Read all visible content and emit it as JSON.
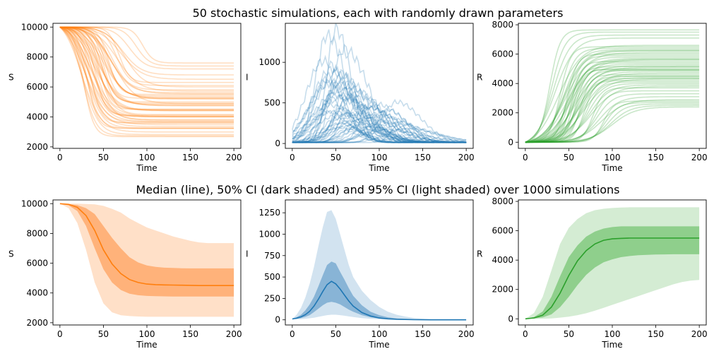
{
  "suptitles": [
    "50 stochastic simulations, each with randomly drawn parameters",
    "Median (line), 50% CI (dark shaded) and 95% CI (light shaded) over 1000 simulations"
  ],
  "colors": {
    "S": "#ff7f0e",
    "I": "#1f77b4",
    "R": "#2ca02c",
    "S_ci95": "#ffe0c8",
    "S_ci50": "#ffb27a",
    "I_ci95": "#d2e3f0",
    "I_ci50": "#88b4d6",
    "R_ci95": "#d4ecd3",
    "R_ci50": "#8fcf8c"
  },
  "chart_data": [
    {
      "type": "line",
      "panel": "top-left",
      "xlabel": "Time",
      "ylabel": "S",
      "xlim": [
        -8,
        208
      ],
      "ylim": [
        1900,
        10250
      ],
      "xticks": [
        0,
        50,
        100,
        150,
        200
      ],
      "yticks": [
        2000,
        4000,
        6000,
        8000,
        10000
      ],
      "series_count": 50,
      "final_values": [
        7600,
        7400,
        7200,
        6800,
        6500,
        6300,
        6100,
        5800,
        5600,
        5500,
        5500,
        5400,
        5300,
        5200,
        5100,
        5000,
        4900,
        4800,
        4700,
        4600,
        4500,
        4500,
        4400,
        4300,
        4200,
        4100,
        4000,
        3900,
        3800,
        3700,
        3600,
        3500,
        3500,
        3400,
        3300,
        3200,
        3100,
        3000,
        2900,
        2800,
        2600,
        2500,
        2400,
        2300,
        4850,
        5250,
        4150,
        3750,
        6000,
        5700
      ],
      "midpoints": [
        95,
        88,
        80,
        72,
        70,
        68,
        65,
        60,
        58,
        58,
        56,
        55,
        54,
        52,
        50,
        50,
        48,
        47,
        46,
        45,
        45,
        44,
        43,
        42,
        40,
        40,
        38,
        38,
        36,
        36,
        35,
        34,
        33,
        33,
        32,
        31,
        30,
        30,
        29,
        28,
        27,
        26,
        26,
        25,
        62,
        52,
        50,
        42,
        75,
        66
      ]
    },
    {
      "type": "line",
      "panel": "top-middle",
      "xlabel": "Time",
      "ylabel": "I",
      "xlim": [
        -8,
        208
      ],
      "ylim": [
        -60,
        1480
      ],
      "xticks": [
        0,
        50,
        100,
        150,
        200
      ],
      "yticks": [
        0,
        500,
        1000
      ],
      "series_count": 50,
      "peak_values": [
        1400,
        1320,
        1150,
        1000,
        900,
        850,
        800,
        780,
        760,
        750,
        720,
        700,
        680,
        650,
        620,
        600,
        580,
        560,
        540,
        520,
        500,
        480,
        460,
        440,
        420,
        400,
        380,
        360,
        350,
        340,
        320,
        300,
        280,
        260,
        240,
        230,
        220,
        200,
        190,
        180,
        170,
        160,
        150,
        140,
        550,
        430,
        380,
        330,
        260,
        200
      ],
      "peak_times": [
        50,
        40,
        60,
        35,
        45,
        48,
        52,
        38,
        55,
        44,
        42,
        58,
        47,
        62,
        50,
        70,
        46,
        54,
        66,
        43,
        120,
        95,
        41,
        80,
        57,
        110,
        39,
        64,
        75,
        53,
        85,
        49,
        100,
        68,
        56,
        115,
        61,
        90,
        72,
        51,
        130,
        105,
        59,
        78,
        65,
        88,
        45,
        98,
        125,
        60
      ]
    },
    {
      "type": "line",
      "panel": "top-right",
      "xlabel": "Time",
      "ylabel": "R",
      "xlim": [
        -8,
        208
      ],
      "ylim": [
        -420,
        8100
      ],
      "xticks": [
        0,
        50,
        100,
        150,
        200
      ],
      "yticks": [
        0,
        2000,
        4000,
        6000,
        8000
      ],
      "series_count": 50,
      "final_values": [
        7650,
        7500,
        7300,
        7100,
        6600,
        6500,
        6400,
        6300,
        6200,
        6100,
        6000,
        5900,
        5800,
        5700,
        5600,
        5500,
        5400,
        5300,
        5200,
        5100,
        5000,
        4900,
        4900,
        4800,
        4700,
        4600,
        4500,
        4500,
        4400,
        4300,
        4200,
        4100,
        4000,
        3900,
        3800,
        3700,
        3500,
        3300,
        3100,
        2900,
        2800,
        2700,
        2600,
        2500,
        2400,
        4950,
        5150,
        4350,
        6250,
        5650
      ],
      "midpoints": [
        28,
        30,
        32,
        34,
        38,
        40,
        42,
        44,
        45,
        46,
        48,
        49,
        50,
        51,
        52,
        53,
        54,
        55,
        56,
        57,
        58,
        59,
        60,
        61,
        62,
        63,
        64,
        65,
        66,
        67,
        68,
        70,
        72,
        74,
        76,
        78,
        80,
        82,
        85,
        88,
        90,
        92,
        95,
        98,
        100,
        55,
        50,
        60,
        44,
        48
      ]
    },
    {
      "type": "area",
      "panel": "bottom-left",
      "xlabel": "Time",
      "ylabel": "S",
      "xlim": [
        -8,
        208
      ],
      "ylim": [
        1850,
        10250
      ],
      "xticks": [
        0,
        50,
        100,
        150,
        200
      ],
      "yticks": [
        2000,
        4000,
        6000,
        8000,
        10000
      ],
      "x": [
        0,
        10,
        20,
        30,
        40,
        50,
        60,
        70,
        80,
        90,
        100,
        110,
        120,
        130,
        140,
        150,
        160,
        170,
        180,
        190,
        200
      ],
      "median": [
        10000,
        9950,
        9750,
        9200,
        8200,
        6900,
        5950,
        5300,
        4900,
        4700,
        4600,
        4560,
        4540,
        4530,
        4520,
        4510,
        4500,
        4500,
        4500,
        4500,
        4500
      ],
      "ci50_low": [
        10000,
        9880,
        9500,
        8500,
        7000,
        5600,
        4700,
        4200,
        3950,
        3850,
        3800,
        3780,
        3770,
        3760,
        3760,
        3760,
        3760,
        3760,
        3760,
        3760,
        3760
      ],
      "ci50_high": [
        10000,
        9980,
        9900,
        9700,
        9300,
        8500,
        7700,
        7000,
        6400,
        6050,
        5850,
        5750,
        5700,
        5680,
        5660,
        5650,
        5650,
        5650,
        5650,
        5650,
        5650
      ],
      "ci95_low": [
        10000,
        9700,
        8700,
        6900,
        4700,
        3300,
        2700,
        2500,
        2450,
        2420,
        2400,
        2400,
        2400,
        2400,
        2400,
        2400,
        2400,
        2400,
        2400,
        2400,
        2400
      ],
      "ci95_high": [
        10000,
        10000,
        10000,
        9980,
        9950,
        9850,
        9650,
        9400,
        9000,
        8700,
        8400,
        8200,
        8000,
        7800,
        7650,
        7500,
        7400,
        7350,
        7350,
        7350,
        7350
      ]
    },
    {
      "type": "area",
      "panel": "bottom-middle",
      "xlabel": "Time",
      "ylabel": "I",
      "xlim": [
        -8,
        208
      ],
      "ylim": [
        -60,
        1400
      ],
      "xticks": [
        0,
        50,
        100,
        150,
        200
      ],
      "yticks": [
        0,
        250,
        500,
        750,
        1000,
        1250
      ],
      "x": [
        0,
        5,
        10,
        15,
        20,
        25,
        30,
        35,
        40,
        45,
        50,
        55,
        60,
        65,
        70,
        80,
        90,
        100,
        110,
        120,
        130,
        140,
        150,
        160,
        170,
        180,
        190,
        200
      ],
      "median": [
        10,
        20,
        35,
        60,
        100,
        160,
        240,
        330,
        410,
        450,
        420,
        360,
        290,
        220,
        160,
        85,
        45,
        22,
        12,
        7,
        4,
        2,
        1,
        0,
        0,
        0,
        0,
        0
      ],
      "ci50_low": [
        10,
        12,
        20,
        35,
        55,
        90,
        130,
        170,
        200,
        210,
        200,
        180,
        150,
        120,
        95,
        55,
        30,
        15,
        8,
        4,
        2,
        1,
        0,
        0,
        0,
        0,
        0,
        0
      ],
      "ci50_high": [
        10,
        30,
        60,
        110,
        180,
        270,
        390,
        520,
        640,
        680,
        660,
        560,
        470,
        370,
        280,
        170,
        95,
        55,
        30,
        16,
        9,
        5,
        2,
        1,
        0,
        0,
        0,
        0
      ],
      "ci95_low": [
        10,
        5,
        8,
        12,
        18,
        25,
        35,
        45,
        55,
        60,
        60,
        55,
        48,
        40,
        32,
        20,
        12,
        7,
        4,
        2,
        1,
        0,
        0,
        0,
        0,
        0,
        0,
        0
      ],
      "ci95_high": [
        10,
        60,
        140,
        260,
        420,
        620,
        860,
        1080,
        1260,
        1280,
        1180,
        1000,
        820,
        640,
        500,
        340,
        230,
        150,
        95,
        60,
        38,
        22,
        12,
        6,
        3,
        1,
        0,
        0
      ]
    },
    {
      "type": "area",
      "panel": "bottom-right",
      "xlabel": "Time",
      "ylabel": "R",
      "xlim": [
        -8,
        208
      ],
      "ylim": [
        -420,
        8100
      ],
      "xticks": [
        0,
        50,
        100,
        150,
        200
      ],
      "yticks": [
        0,
        2000,
        4000,
        6000,
        8000
      ],
      "x": [
        0,
        10,
        20,
        30,
        40,
        50,
        60,
        70,
        80,
        90,
        100,
        110,
        120,
        130,
        140,
        150,
        160,
        170,
        180,
        190,
        200
      ],
      "median": [
        0,
        60,
        250,
        800,
        1750,
        2950,
        3950,
        4650,
        5100,
        5350,
        5450,
        5480,
        5500,
        5500,
        5500,
        5500,
        5500,
        5500,
        5500,
        5500,
        5500
      ],
      "ci50_low": [
        0,
        20,
        100,
        300,
        800,
        1500,
        2300,
        3000,
        3500,
        3850,
        4050,
        4200,
        4280,
        4330,
        4360,
        4380,
        4390,
        4400,
        4400,
        4400,
        4400
      ],
      "ci50_high": [
        0,
        120,
        500,
        1500,
        2900,
        4200,
        5000,
        5600,
        5950,
        6150,
        6250,
        6300,
        6300,
        6300,
        6300,
        6300,
        6300,
        6300,
        6300,
        6300,
        6300
      ],
      "ci95_low": [
        0,
        0,
        10,
        30,
        80,
        150,
        250,
        380,
        550,
        750,
        950,
        1150,
        1350,
        1550,
        1750,
        1950,
        2150,
        2350,
        2500,
        2600,
        2650
      ],
      "ci95_high": [
        0,
        400,
        1500,
        3300,
        5100,
        6200,
        6800,
        7200,
        7400,
        7500,
        7550,
        7580,
        7600,
        7600,
        7600,
        7600,
        7600,
        7600,
        7600,
        7600,
        7600
      ]
    }
  ]
}
